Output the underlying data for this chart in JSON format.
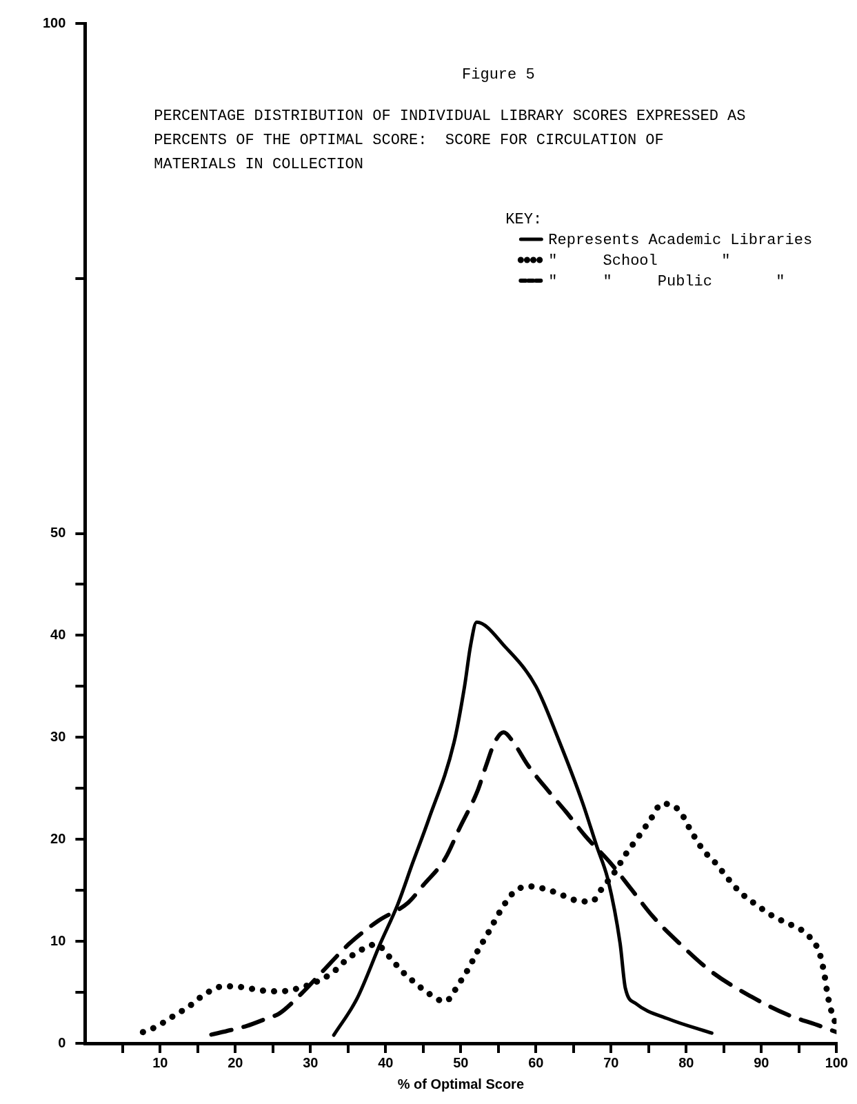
{
  "chart_data": {
    "type": "line",
    "title": "Figure 5",
    "subtitle": "PERCENTAGE DISTRIBUTION OF INDIVIDUAL LIBRARY SCORES EXPRESSED AS PERCENTS OF THE OPTIMAL SCORE:  SCORE FOR CIRCULATION OF MATERIALS IN COLLECTION",
    "xlabel": "% of Optimal Score",
    "legend_title": "KEY:",
    "legend": "top right",
    "grid": false,
    "xlim": [
      0,
      100
    ],
    "xticks": [
      {
        "value": 5,
        "label": null
      },
      10,
      {
        "value": 15,
        "label": null
      },
      20,
      {
        "value": 25,
        "label": null
      },
      30,
      {
        "value": 35,
        "label": null
      },
      40,
      {
        "value": 45,
        "label": null
      },
      50,
      {
        "value": 55,
        "label": null
      },
      60,
      {
        "value": 65,
        "label": null
      },
      70,
      {
        "value": 75,
        "label": null
      },
      80,
      {
        "value": 85,
        "label": null
      },
      90,
      {
        "value": 95,
        "label": null
      },
      100
    ],
    "ylim": [
      0,
      100
    ],
    "yticks": [
      0,
      {
        "value": 5,
        "label": null
      },
      10,
      {
        "value": 15,
        "label": null
      },
      20,
      {
        "value": 25,
        "label": null
      },
      30,
      {
        "value": 35,
        "label": null
      },
      40,
      {
        "value": 45,
        "label": null
      },
      50,
      {
        "value": 75,
        "label": null
      },
      100
    ],
    "series": [
      {
        "name": "Represents Academic Libraries",
        "color": "#000000",
        "line_style": "solid",
        "x": [
          33.1,
          36.2,
          39.3,
          41.6,
          43.6,
          45.7,
          49.1,
          50.5,
          51.3,
          52.1,
          56,
          60,
          63,
          66.2,
          68.1,
          69.6,
          71.2,
          71.9,
          73.3,
          77.6,
          83.4
        ],
        "values": [
          0.8,
          4.4,
          9.8,
          13.6,
          17.7,
          21.9,
          29.5,
          35,
          39,
          41.3,
          38.8,
          35,
          29.8,
          23.6,
          19.3,
          16,
          9.8,
          5.4,
          3.9,
          2.4,
          1
        ]
      },
      {
        "name": "\"     School       \"",
        "color": "#000000",
        "line_style": "dotted",
        "x": [
          7.7,
          9.4,
          11.6,
          13.8,
          16.1,
          18.5,
          21,
          23.3,
          25.5,
          27.3,
          32.7,
          34.8,
          36.6,
          38.7,
          40.6,
          42,
          43.8,
          45.7,
          47.9,
          49.8,
          51,
          52.2,
          53.7,
          55.2,
          56.9,
          58.9,
          61.4,
          63.6,
          65.4,
          67.4,
          68.9,
          70.4,
          72,
          73.5,
          75.2,
          76.8,
          79.1,
          80.5,
          82.2,
          84,
          85.5,
          87.2,
          89.3,
          91.7,
          94,
          96.2,
          97.8,
          98.4,
          98.8,
          99.3,
          100
        ],
        "values": [
          1.1,
          1.6,
          2.6,
          3.6,
          4.9,
          5.6,
          5.5,
          5.2,
          5.1,
          5.2,
          6.8,
          8.2,
          9.1,
          9.7,
          8.4,
          7.2,
          6,
          4.9,
          4.1,
          5.9,
          7.3,
          9,
          10.9,
          12.9,
          14.7,
          15.4,
          15.1,
          14.5,
          14,
          13.9,
          15.3,
          16.7,
          18.6,
          20.1,
          21.9,
          23.5,
          22.8,
          21,
          19,
          17.6,
          16.2,
          14.8,
          13.6,
          12.4,
          11.6,
          10.6,
          8.7,
          6.7,
          4.8,
          3.2,
          1.7
        ]
      },
      {
        "name": "\"     \"     Public       \"",
        "color": "#000000",
        "line_style": "dashed",
        "x": [
          16.8,
          19.4,
          21.5,
          24.4,
          25.8,
          28.7,
          31.8,
          35.2,
          39,
          43,
          45,
          47.9,
          49.9,
          52.2,
          53.4,
          54.5,
          55.7,
          57.1,
          58.9,
          61.7,
          64,
          66.6,
          69.9,
          72.7,
          75.6,
          79.1,
          83.4,
          88.6,
          93.5,
          97.8,
          100
        ],
        "values": [
          0.85,
          1.3,
          1.7,
          2.5,
          2.9,
          4.8,
          7.2,
          9.8,
          12,
          13.8,
          15.5,
          18.1,
          21.2,
          24.7,
          27.3,
          29.5,
          30.5,
          29.4,
          27.3,
          24.7,
          22.7,
          20.3,
          17.7,
          15.1,
          12.4,
          9.8,
          7,
          4.6,
          2.8,
          1.7,
          1.1
        ]
      }
    ]
  }
}
